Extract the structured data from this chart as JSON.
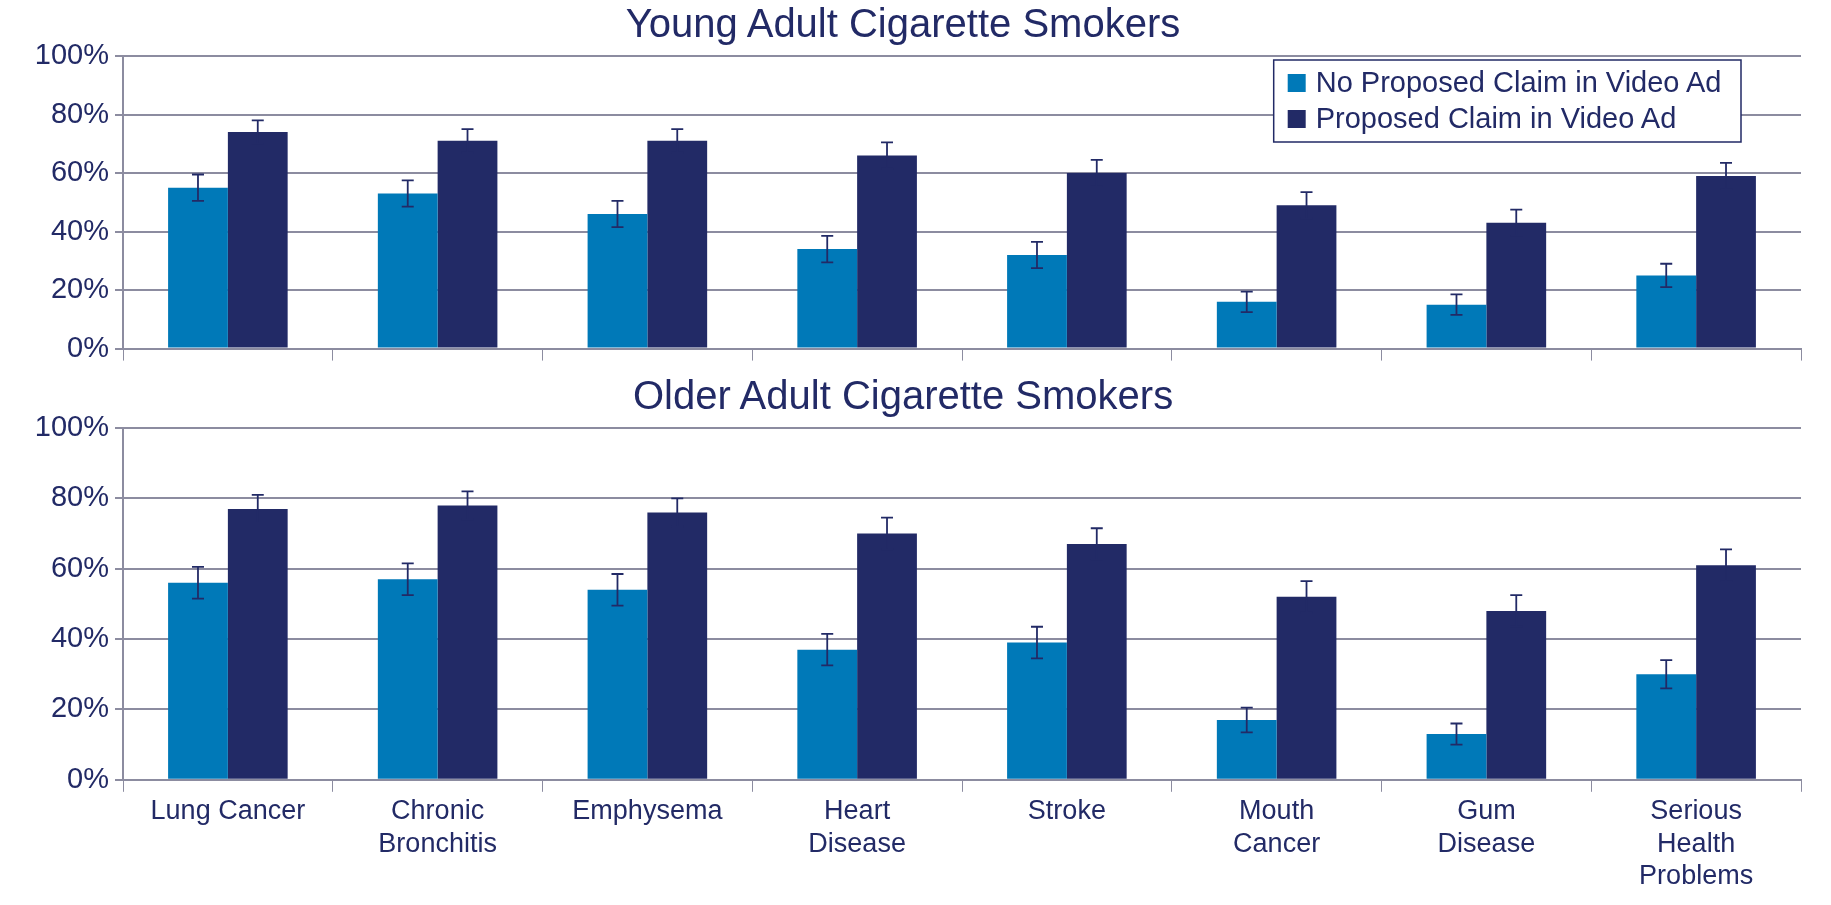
{
  "chart_data": [
    {
      "type": "bar",
      "title": "Young Adult Cigarette Smokers",
      "categories": [
        null,
        null,
        null,
        null,
        null,
        null,
        null,
        null
      ],
      "series": [
        {
          "name": "No Proposed Claim in Video Ad",
          "color": "#0079b8",
          "values": [
            55,
            53,
            46,
            34,
            32,
            16,
            15,
            25
          ],
          "errors": [
            4.5,
            4.5,
            4.5,
            4.5,
            4.5,
            3.5,
            3.5,
            4
          ]
        },
        {
          "name": "Proposed Claim in Video Ad",
          "color": "#222a66",
          "values": [
            74,
            71,
            71,
            66,
            60,
            49,
            43,
            59
          ],
          "errors": [
            4,
            4,
            4,
            4.5,
            4.5,
            4.5,
            4.5,
            4.5
          ]
        }
      ],
      "ylim": [
        0,
        100
      ],
      "yticks": [
        {
          "value": 0,
          "label": "0%"
        },
        {
          "value": 20,
          "label": "20%"
        },
        {
          "value": 40,
          "label": "40%"
        },
        {
          "value": 60,
          "label": "60%"
        },
        {
          "value": 80,
          "label": "80%"
        },
        {
          "value": 100,
          "label": "100%"
        }
      ],
      "grid": "y",
      "legend": "top right",
      "tick_labels": "y"
    },
    {
      "type": "bar",
      "title": "Older Adult Cigarette Smokers",
      "categories": [
        "Lung Cancer",
        "Chronic Bronchitis",
        "Emphysema",
        "Heart Disease",
        "Stroke",
        "Mouth Cancer",
        "Gum Disease",
        "Serious Health Problems"
      ],
      "series": [
        {
          "color": "#0079b8",
          "values": [
            56,
            57,
            54,
            37,
            39,
            17,
            13,
            30
          ],
          "errors": [
            4.5,
            4.5,
            4.5,
            4.5,
            4.5,
            3.5,
            3,
            4
          ]
        },
        {
          "color": "#222a66",
          "values": [
            77,
            78,
            76,
            70,
            67,
            52,
            48,
            61
          ],
          "errors": [
            4,
            4,
            4,
            4.5,
            4.5,
            4.5,
            4.5,
            4.5
          ]
        }
      ],
      "ylim": [
        0,
        100
      ],
      "yticks": [
        {
          "value": 0,
          "label": "0%"
        },
        {
          "value": 20,
          "label": "20%"
        },
        {
          "value": 40,
          "label": "40%"
        },
        {
          "value": 60,
          "label": "60%"
        },
        {
          "value": 80,
          "label": "80%"
        },
        {
          "value": 100,
          "label": "100%"
        }
      ],
      "grid": "y",
      "legend": false
    }
  ]
}
